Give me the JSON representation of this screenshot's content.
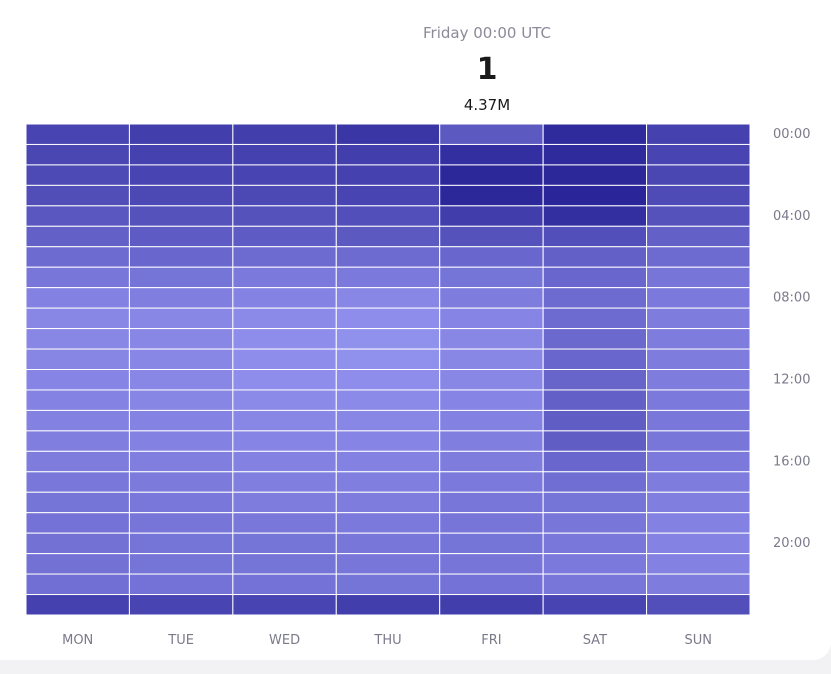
{
  "tooltip": {
    "label": "Friday 00:00 UTC",
    "rank": "1",
    "value": "4.37M"
  },
  "chart_data": {
    "type": "heatmap",
    "title": "",
    "xlabel": "",
    "ylabel": "",
    "x_categories": [
      "MON",
      "TUE",
      "WED",
      "THU",
      "FRI",
      "SAT",
      "SUN"
    ],
    "y_categories": [
      "00:00",
      "01:00",
      "02:00",
      "03:00",
      "04:00",
      "05:00",
      "06:00",
      "07:00",
      "08:00",
      "09:00",
      "10:00",
      "11:00",
      "12:00",
      "13:00",
      "14:00",
      "15:00",
      "16:00",
      "17:00",
      "18:00",
      "19:00",
      "20:00",
      "21:00",
      "22:00",
      "23:00"
    ],
    "y_tick_labels": [
      "00:00",
      "04:00",
      "08:00",
      "12:00",
      "16:00",
      "20:00"
    ],
    "highlighted_cell": {
      "x": "FRI",
      "y": "00:00"
    },
    "intensity_scale": "0 = lightest, 1 = darkest",
    "intensity": [
      [
        0.7,
        0.74,
        0.74,
        0.8,
        0.55,
        0.88,
        0.72
      ],
      [
        0.68,
        0.72,
        0.72,
        0.74,
        0.85,
        0.88,
        0.7
      ],
      [
        0.66,
        0.7,
        0.7,
        0.72,
        0.9,
        0.9,
        0.68
      ],
      [
        0.63,
        0.67,
        0.67,
        0.7,
        0.9,
        0.92,
        0.65
      ],
      [
        0.56,
        0.6,
        0.6,
        0.62,
        0.75,
        0.85,
        0.6
      ],
      [
        0.5,
        0.53,
        0.53,
        0.55,
        0.6,
        0.62,
        0.5
      ],
      [
        0.42,
        0.45,
        0.42,
        0.42,
        0.45,
        0.5,
        0.42
      ],
      [
        0.34,
        0.36,
        0.32,
        0.32,
        0.36,
        0.45,
        0.35
      ],
      [
        0.26,
        0.28,
        0.25,
        0.22,
        0.3,
        0.42,
        0.32
      ],
      [
        0.22,
        0.22,
        0.2,
        0.18,
        0.24,
        0.42,
        0.3
      ],
      [
        0.22,
        0.22,
        0.18,
        0.16,
        0.22,
        0.44,
        0.3
      ],
      [
        0.23,
        0.22,
        0.18,
        0.16,
        0.22,
        0.45,
        0.3
      ],
      [
        0.24,
        0.22,
        0.18,
        0.18,
        0.22,
        0.47,
        0.3
      ],
      [
        0.25,
        0.23,
        0.2,
        0.2,
        0.24,
        0.5,
        0.32
      ],
      [
        0.26,
        0.25,
        0.22,
        0.22,
        0.26,
        0.52,
        0.33
      ],
      [
        0.28,
        0.26,
        0.24,
        0.24,
        0.28,
        0.52,
        0.34
      ],
      [
        0.3,
        0.28,
        0.26,
        0.26,
        0.3,
        0.45,
        0.32
      ],
      [
        0.33,
        0.31,
        0.28,
        0.28,
        0.32,
        0.4,
        0.3
      ],
      [
        0.36,
        0.33,
        0.3,
        0.3,
        0.34,
        0.36,
        0.28
      ],
      [
        0.37,
        0.35,
        0.33,
        0.32,
        0.35,
        0.34,
        0.26
      ],
      [
        0.38,
        0.36,
        0.36,
        0.34,
        0.36,
        0.33,
        0.25
      ],
      [
        0.38,
        0.36,
        0.36,
        0.34,
        0.35,
        0.32,
        0.26
      ],
      [
        0.39,
        0.37,
        0.37,
        0.36,
        0.37,
        0.34,
        0.3
      ],
      [
        0.72,
        0.7,
        0.7,
        0.74,
        0.74,
        0.7,
        0.62
      ]
    ],
    "colors": {
      "low": "#a6a6ff",
      "high": "#1f1a8f"
    },
    "grid": true
  }
}
